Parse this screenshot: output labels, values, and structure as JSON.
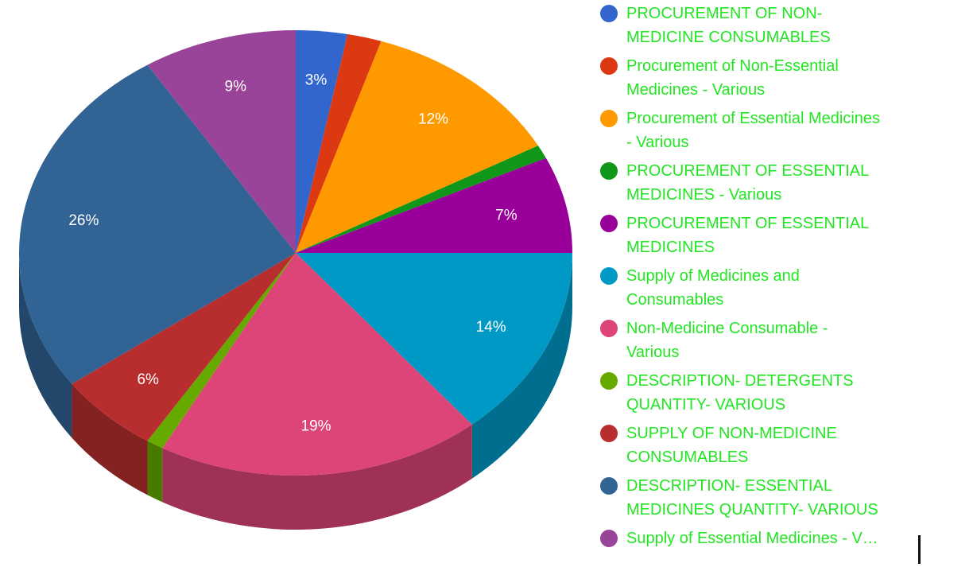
{
  "chart_data": {
    "type": "pie",
    "style": "3d",
    "slices": [
      {
        "label": "PROCUREMENT OF NON-MEDICINE CONSUMABLES",
        "value": 3,
        "value_label": "3%",
        "color": "#3366cc"
      },
      {
        "label": "Procurement of Non-Essential Medicines - Various",
        "value": 2,
        "value_label": "",
        "color": "#dc3912"
      },
      {
        "label": "Procurement of Essential Medicines - Various",
        "value": 12,
        "value_label": "12%",
        "color": "#ff9900"
      },
      {
        "label": "PROCUREMENT OF ESSENTIAL MEDICINES - Various",
        "value": 1,
        "value_label": "",
        "color": "#109618"
      },
      {
        "label": "PROCUREMENT OF ESSENTIAL MEDICINES",
        "value": 7,
        "value_label": "7%",
        "color": "#990099"
      },
      {
        "label": "Supply of Medicines and Consumables",
        "value": 14,
        "value_label": "14%",
        "color": "#0099c6"
      },
      {
        "label": "Non-Medicine Consumable - Various",
        "value": 19,
        "value_label": "19%",
        "color": "#dd4477"
      },
      {
        "label": "DESCRIPTION- DETERGENTS QUANTITY- VARIOUS",
        "value": 1,
        "value_label": "",
        "color": "#66aa00"
      },
      {
        "label": "SUPPLY OF NON-MEDICINE CONSUMABLES",
        "value": 6,
        "value_label": "6%",
        "color": "#b82e2e"
      },
      {
        "label": "DESCRIPTION- ESSENTIAL MEDICINES QUANTITY- VARIOUS",
        "value": 26,
        "value_label": "26%",
        "color": "#316395"
      },
      {
        "label": "Supply of Essential Medicines - Various",
        "value": 9,
        "value_label": "9%",
        "color": "#994499"
      }
    ],
    "legend": {
      "placement": "right",
      "text_color": "#22e622",
      "entries": [
        {
          "lines": [
            "PROCUREMENT OF NON-",
            "MEDICINE CONSUMABLES"
          ]
        },
        {
          "lines": [
            "Procurement of Non-Essential",
            "Medicines - Various"
          ]
        },
        {
          "lines": [
            "Procurement of Essential Medicines",
            "- Various"
          ]
        },
        {
          "lines": [
            "PROCUREMENT OF ESSENTIAL",
            "MEDICINES - Various"
          ]
        },
        {
          "lines": [
            "PROCUREMENT OF ESSENTIAL",
            "MEDICINES"
          ]
        },
        {
          "lines": [
            "Supply of Medicines and",
            "Consumables"
          ]
        },
        {
          "lines": [
            "Non-Medicine Consumable -",
            "Various"
          ]
        },
        {
          "lines": [
            "DESCRIPTION- DETERGENTS",
            "QUANTITY- VARIOUS"
          ]
        },
        {
          "lines": [
            "SUPPLY OF NON-MEDICINE",
            "CONSUMABLES"
          ]
        },
        {
          "lines": [
            "DESCRIPTION- ESSENTIAL",
            "MEDICINES QUANTITY- VARIOUS"
          ]
        },
        {
          "lines": [
            "Supply of Essential Medicines - V…"
          ]
        }
      ]
    }
  }
}
